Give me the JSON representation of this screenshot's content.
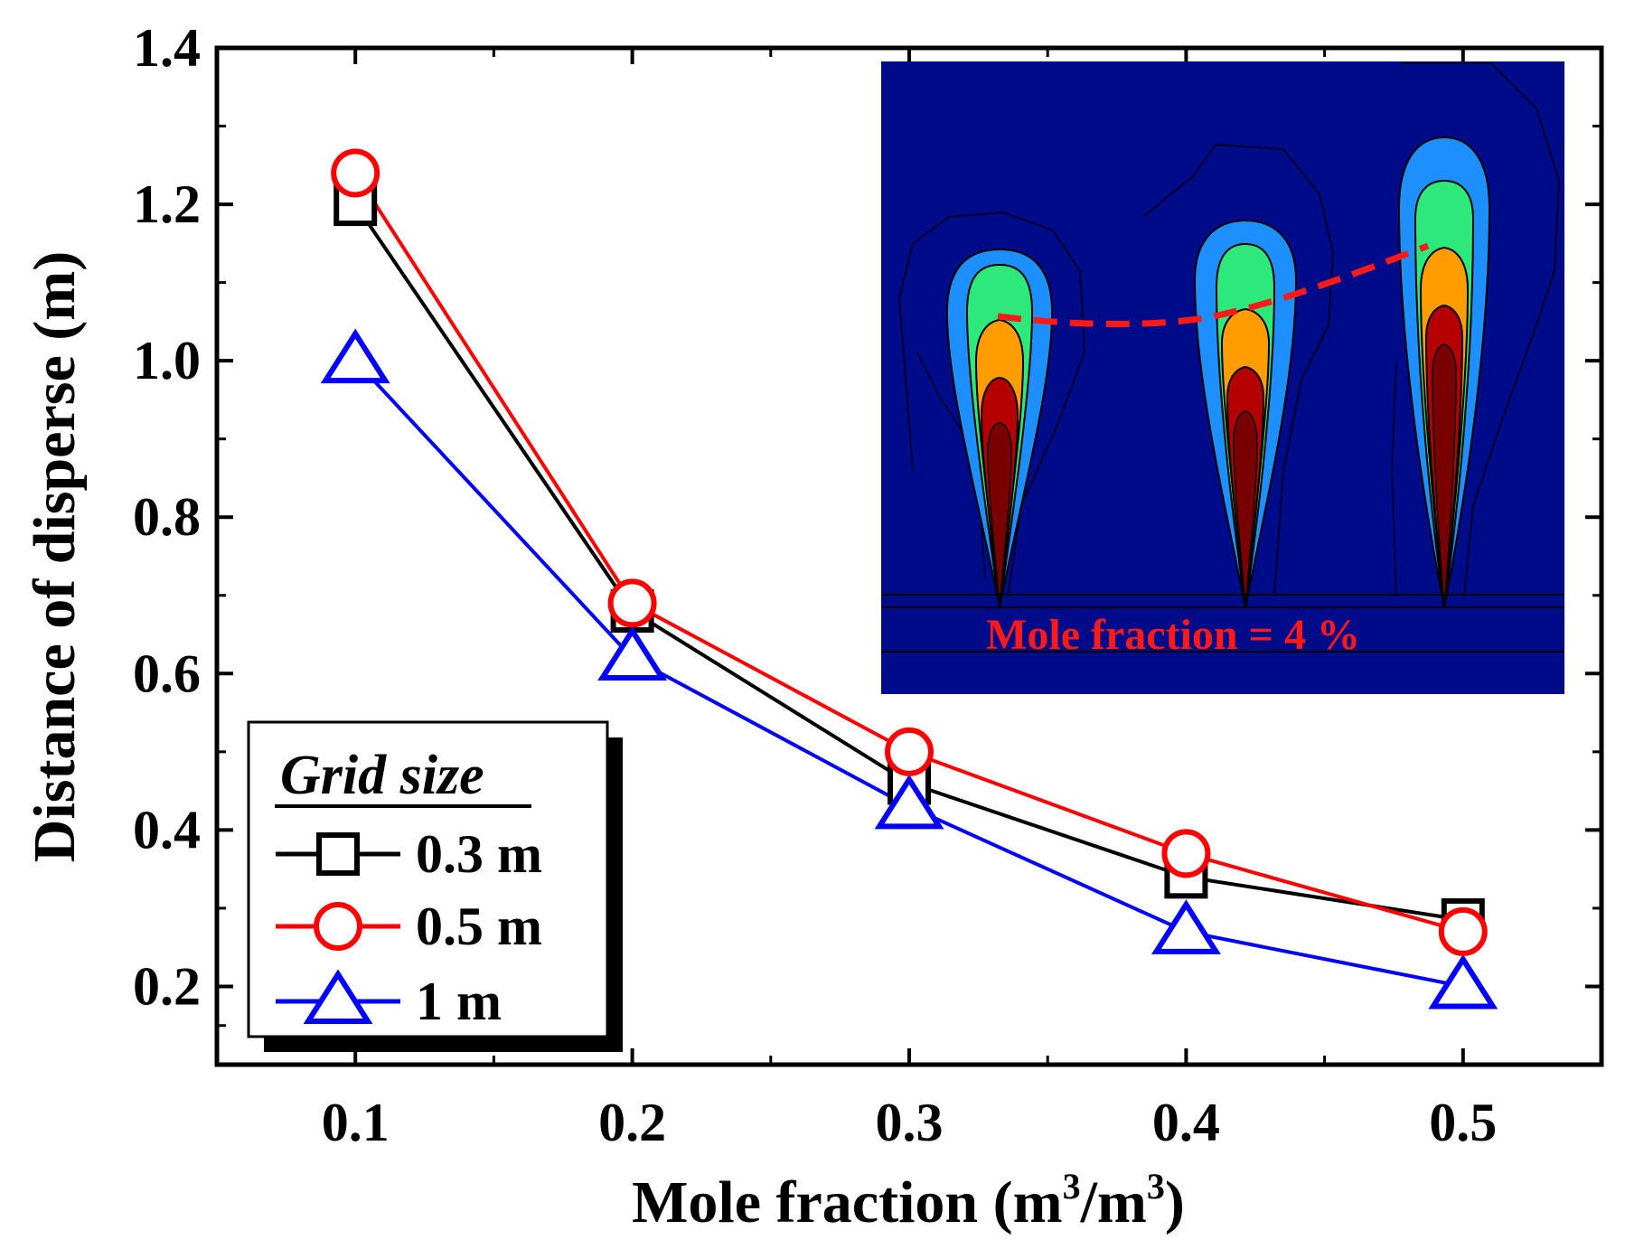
{
  "chart_data": {
    "type": "line",
    "title": "",
    "xlabel": "Mole fraction (m3/m3)",
    "xlabel_parts": {
      "main": "Mole fraction (m",
      "sup1": "3",
      "mid": "/m",
      "sup2": "3",
      "end": ")"
    },
    "ylabel": "Distance of disperse (m)",
    "xlim": [
      0.05,
      0.55
    ],
    "ylim": [
      0.1,
      1.4
    ],
    "x_ticks": [
      0.1,
      0.2,
      0.3,
      0.4,
      0.5
    ],
    "x_tick_labels": [
      "0.1",
      "0.2",
      "0.3",
      "0.4",
      "0.5"
    ],
    "y_ticks": [
      0.2,
      0.4,
      0.6,
      0.8,
      1.0,
      1.2,
      1.4
    ],
    "y_tick_labels": [
      "0.2",
      "0.4",
      "0.6",
      "0.8",
      "1.0",
      "1.2",
      "1.4"
    ],
    "x": [
      0.1,
      0.2,
      0.3,
      0.4,
      0.5
    ],
    "series": [
      {
        "name": "0.3 m",
        "marker": "square",
        "color": "#000000",
        "values": [
          1.2,
          0.68,
          0.46,
          0.34,
          0.285
        ]
      },
      {
        "name": "0.5 m",
        "marker": "circle",
        "color": "#ff0000",
        "values": [
          1.24,
          0.69,
          0.5,
          0.37,
          0.27
        ]
      },
      {
        "name": "1 m",
        "marker": "triangle",
        "color": "#0000ff",
        "values": [
          1.0,
          0.62,
          0.43,
          0.27,
          0.2
        ]
      }
    ],
    "legend": {
      "title": "Grid size",
      "position": "bottom-left"
    },
    "inset": {
      "description": "contour plot of gas plumes",
      "annotation": "Mole fraction = 4 %",
      "background": "#000b8a",
      "plume_colors": [
        "#1e8fff",
        "#2de87a",
        "#ff9c00",
        "#b40000",
        "#7a0000"
      ],
      "dash_color": "#ff1a1a"
    }
  }
}
